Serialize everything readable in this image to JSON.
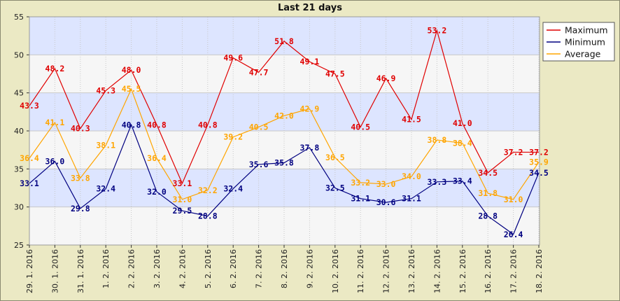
{
  "chart_data": {
    "type": "line",
    "title": "Last 21 days",
    "x": [
      "29. 1. 2016",
      "30. 1. 2016",
      "31. 1. 2016",
      "1. 2. 2016",
      "2. 2. 2016",
      "3. 2. 2016",
      "4. 2. 2016",
      "5. 2. 2016",
      "6. 2. 2016",
      "7. 2. 2016",
      "8. 2. 2016",
      "9. 2. 2016",
      "10. 2. 2016",
      "11. 2. 2016",
      "12. 2. 2016",
      "13. 2. 2016",
      "14. 2. 2016",
      "15. 2. 2016",
      "16. 2. 2016",
      "17. 2. 2016",
      "18. 2. 2016"
    ],
    "ylim": [
      25,
      55
    ],
    "yticks": [
      25,
      30,
      35,
      40,
      45,
      50,
      55
    ],
    "grid": true,
    "legend_position": "top-right",
    "series": [
      {
        "name": "Maximum",
        "color": "#e00000",
        "values": [
          43.3,
          48.2,
          40.3,
          45.3,
          48.0,
          40.8,
          33.1,
          40.8,
          49.6,
          47.7,
          51.8,
          49.1,
          47.5,
          40.5,
          46.9,
          41.5,
          53.2,
          41.0,
          34.5,
          37.2,
          37.2
        ]
      },
      {
        "name": "Minimum",
        "color": "#000080",
        "values": [
          33.1,
          36.0,
          29.8,
          32.4,
          40.8,
          32.0,
          29.5,
          28.8,
          32.4,
          35.6,
          35.8,
          37.8,
          32.5,
          31.1,
          30.6,
          31.1,
          33.3,
          33.4,
          28.8,
          26.4,
          34.5
        ]
      },
      {
        "name": "Average",
        "color": "#ffa500",
        "values": [
          36.4,
          41.1,
          33.8,
          38.1,
          45.5,
          36.4,
          31.0,
          32.2,
          39.2,
          40.5,
          42.0,
          42.9,
          36.5,
          33.2,
          33.0,
          34.0,
          38.8,
          38.4,
          31.8,
          31.0,
          35.9
        ]
      }
    ]
  }
}
